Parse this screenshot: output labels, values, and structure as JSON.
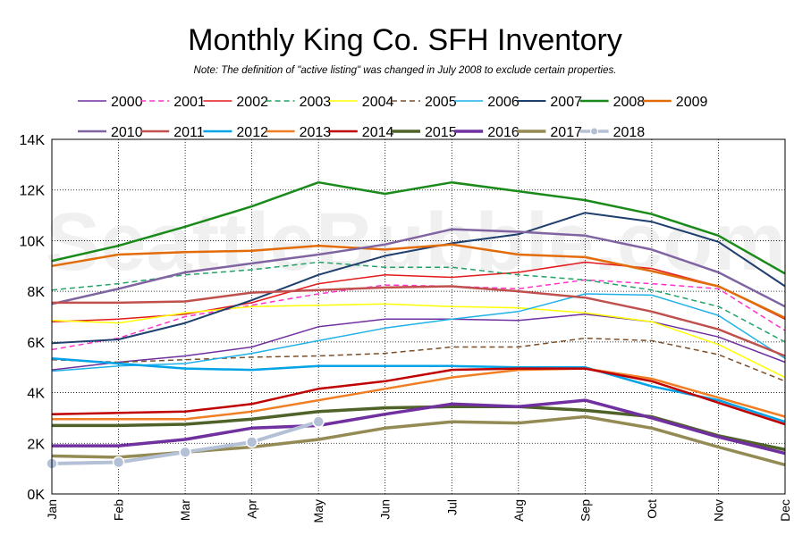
{
  "chart_data": {
    "type": "line",
    "title": "Monthly King Co. SFH Inventory",
    "subtitle": "Note: The definition of \"active listing\" was changed in July 2008 to exclude certain properties.",
    "watermark": "SeattleBubble.com",
    "categories": [
      "Jan",
      "Feb",
      "Mar",
      "Apr",
      "May",
      "Jun",
      "Jul",
      "Aug",
      "Sep",
      "Oct",
      "Nov",
      "Dec"
    ],
    "ylim": [
      0,
      14000
    ],
    "yticks": [
      {
        "value": 0,
        "label": "0K"
      },
      {
        "value": 2000,
        "label": "2K"
      },
      {
        "value": 4000,
        "label": "4K"
      },
      {
        "value": 6000,
        "label": "6K"
      },
      {
        "value": 8000,
        "label": "8K"
      },
      {
        "value": 10000,
        "label": "10K"
      },
      {
        "value": 12000,
        "label": "12K"
      },
      {
        "value": 14000,
        "label": "14K"
      }
    ],
    "grid": true,
    "legend_position": "top",
    "series": [
      {
        "name": "2000",
        "color": "#7030a0",
        "dash": false,
        "width": 1.5,
        "values": [
          4900,
          5200,
          5450,
          5800,
          6600,
          6900,
          6900,
          6850,
          7100,
          6800,
          6200,
          5200
        ]
      },
      {
        "name": "2001",
        "color": "#ff33cc",
        "dash": true,
        "width": 1.5,
        "values": [
          5700,
          6150,
          7000,
          7450,
          7900,
          8250,
          8200,
          8100,
          8450,
          8300,
          8100,
          6450
        ]
      },
      {
        "name": "2002",
        "color": "#e31a1c",
        "dash": false,
        "width": 1.5,
        "values": [
          6800,
          6900,
          7100,
          7550,
          8300,
          8650,
          8550,
          8750,
          9150,
          8900,
          8200,
          6900
        ]
      },
      {
        "name": "2003",
        "color": "#21a366",
        "dash": true,
        "width": 1.5,
        "values": [
          8050,
          8300,
          8650,
          8850,
          9150,
          8950,
          8950,
          8650,
          8450,
          8050,
          7400,
          6000
        ]
      },
      {
        "name": "2004",
        "color": "#ffff00",
        "dash": false,
        "width": 1.5,
        "values": [
          6850,
          6750,
          7150,
          7400,
          7450,
          7500,
          7400,
          7350,
          7150,
          6800,
          5900,
          4600
        ]
      },
      {
        "name": "2005",
        "color": "#7a4f2a",
        "dash": true,
        "width": 1.5,
        "values": [
          5300,
          5200,
          5300,
          5400,
          5450,
          5550,
          5800,
          5800,
          6150,
          6050,
          5500,
          4450
        ]
      },
      {
        "name": "2006",
        "color": "#1fb1e8",
        "dash": false,
        "width": 1.5,
        "values": [
          4850,
          5050,
          5150,
          5550,
          6050,
          6550,
          6900,
          7200,
          7900,
          7850,
          7050,
          5350
        ]
      },
      {
        "name": "2007",
        "color": "#1f3f6e",
        "dash": false,
        "width": 2,
        "values": [
          5950,
          6100,
          6750,
          7650,
          8650,
          9400,
          9900,
          10250,
          11100,
          10750,
          9950,
          8200
        ]
      },
      {
        "name": "2008",
        "color": "#1a8a1a",
        "dash": false,
        "width": 2.5,
        "values": [
          9200,
          9800,
          10550,
          11350,
          12300,
          11850,
          12300,
          11950,
          11600,
          11050,
          10200,
          8700
        ]
      },
      {
        "name": "2009",
        "color": "#e36c0a",
        "dash": false,
        "width": 2.5,
        "values": [
          9000,
          9450,
          9550,
          9600,
          9800,
          9650,
          9850,
          9450,
          9350,
          8800,
          8200,
          6950
        ]
      },
      {
        "name": "2010",
        "color": "#8064a2",
        "dash": false,
        "width": 2.5,
        "values": [
          7500,
          8100,
          8750,
          9100,
          9450,
          9850,
          10450,
          10350,
          10200,
          9650,
          8750,
          7400
        ]
      },
      {
        "name": "2011",
        "color": "#c0504d",
        "dash": false,
        "width": 2.5,
        "values": [
          7550,
          7550,
          7600,
          7950,
          8050,
          8150,
          8200,
          8000,
          7750,
          7200,
          6500,
          5450
        ]
      },
      {
        "name": "2012",
        "color": "#00a2e8",
        "dash": false,
        "width": 2.5,
        "values": [
          5350,
          5150,
          4950,
          4900,
          5050,
          5050,
          5050,
          5000,
          5000,
          4250,
          3700,
          2850
        ]
      },
      {
        "name": "2013",
        "color": "#f07e24",
        "dash": false,
        "width": 2.5,
        "values": [
          2950,
          2950,
          2950,
          3250,
          3700,
          4150,
          4600,
          4900,
          4950,
          4550,
          3800,
          3050
        ]
      },
      {
        "name": "2014",
        "color": "#c00000",
        "dash": false,
        "width": 2.5,
        "values": [
          3150,
          3200,
          3250,
          3550,
          4150,
          4450,
          4900,
          4950,
          4950,
          4450,
          3600,
          2750
        ]
      },
      {
        "name": "2015",
        "color": "#4f6228",
        "dash": false,
        "width": 3.5,
        "values": [
          2700,
          2700,
          2750,
          2950,
          3250,
          3400,
          3450,
          3450,
          3300,
          3050,
          2300,
          1750
        ]
      },
      {
        "name": "2016",
        "color": "#7030a0",
        "dash": false,
        "width": 3.5,
        "values": [
          1900,
          1900,
          2150,
          2600,
          2700,
          3150,
          3550,
          3450,
          3700,
          3000,
          2250,
          1600
        ]
      },
      {
        "name": "2017",
        "color": "#948a54",
        "dash": false,
        "width": 3.5,
        "values": [
          1500,
          1450,
          1650,
          1850,
          2150,
          2600,
          2850,
          2800,
          3050,
          2600,
          1850,
          1150
        ]
      },
      {
        "name": "2018",
        "color": "#b4c0d6",
        "dash": false,
        "width": 4,
        "markers": true,
        "values": [
          1200,
          1250,
          1650,
          2050,
          2850,
          null,
          null,
          null,
          null,
          null,
          null,
          null
        ]
      }
    ]
  }
}
